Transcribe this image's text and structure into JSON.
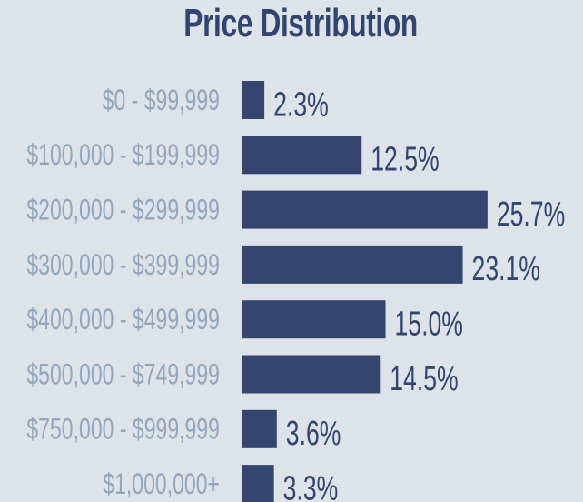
{
  "chart_data": {
    "type": "bar",
    "orientation": "horizontal",
    "title": "Price Distribution",
    "categories": [
      "$0 - $99,999",
      "$100,000 - $199,999",
      "$200,000 - $299,999",
      "$300,000 - $399,999",
      "$400,000 - $499,999",
      "$500,000 - $749,999",
      "$750,000 - $999,999",
      "$1,000,000+"
    ],
    "values": [
      2.3,
      12.5,
      25.7,
      23.1,
      15.0,
      14.5,
      3.6,
      3.3
    ],
    "value_labels": [
      "2.3%",
      "12.5%",
      "25.7%",
      "23.1%",
      "15.0%",
      "14.5%",
      "3.6%",
      "3.3%"
    ],
    "unit": "%",
    "grid": false,
    "legend": "none",
    "colors": {
      "bar": "#34466f",
      "value_text": "#324570",
      "category_text": "#93a6bd",
      "background": "#dde3e8"
    }
  }
}
